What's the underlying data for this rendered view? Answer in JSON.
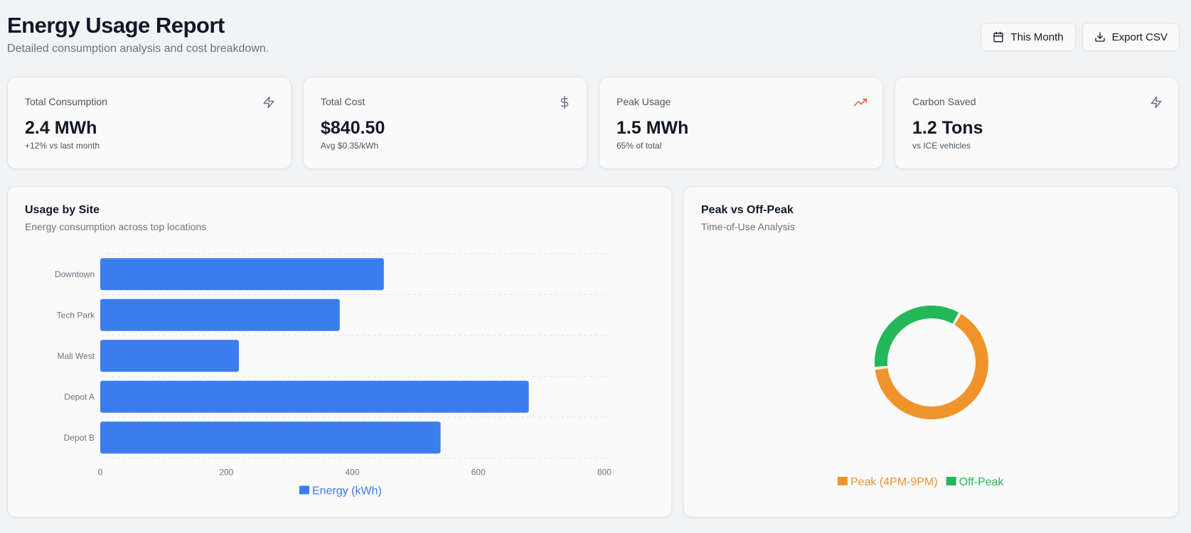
{
  "header": {
    "title": "Energy Usage Report",
    "subtitle": "Detailed consumption analysis and cost breakdown.",
    "period_button": "This Month",
    "export_button": "Export CSV"
  },
  "stats": [
    {
      "label": "Total Consumption",
      "value": "2.4 MWh",
      "sub": "+12% vs last month",
      "icon": "lightning-icon"
    },
    {
      "label": "Total Cost",
      "value": "$840.50",
      "sub": "Avg $0.35/kWh",
      "icon": "dollar-icon"
    },
    {
      "label": "Peak Usage",
      "value": "1.5 MWh",
      "sub": "65% of total",
      "icon": "trending-up-icon"
    },
    {
      "label": "Carbon Saved",
      "value": "1.2 Tons",
      "sub": "vs ICE vehicles",
      "icon": "lightning-icon"
    }
  ],
  "colors": {
    "bar": "#3b7ded",
    "peak": "#f0932b",
    "off_peak": "#22b85a",
    "trend_icon": "#e8533a"
  },
  "chart_data": [
    {
      "type": "bar",
      "orientation": "horizontal",
      "title": "Usage by Site",
      "subtitle": "Energy consumption across top locations",
      "categories": [
        "Downtown",
        "Tech Park",
        "Mall West",
        "Depot A",
        "Depot B"
      ],
      "series": [
        {
          "name": "Energy (kWh)",
          "values": [
            450,
            380,
            220,
            680,
            540
          ]
        }
      ],
      "xlim": [
        0,
        800
      ],
      "xticks": [
        0,
        200,
        400,
        600,
        800
      ],
      "grid": true,
      "legend": "bottom"
    },
    {
      "type": "pie",
      "variant": "donut",
      "title": "Peak vs Off-Peak",
      "subtitle": "Time-of-Use Analysis",
      "labels": [
        "Peak (4PM-9PM)",
        "Off-Peak"
      ],
      "values": [
        65,
        35
      ],
      "legend": "bottom"
    }
  ]
}
